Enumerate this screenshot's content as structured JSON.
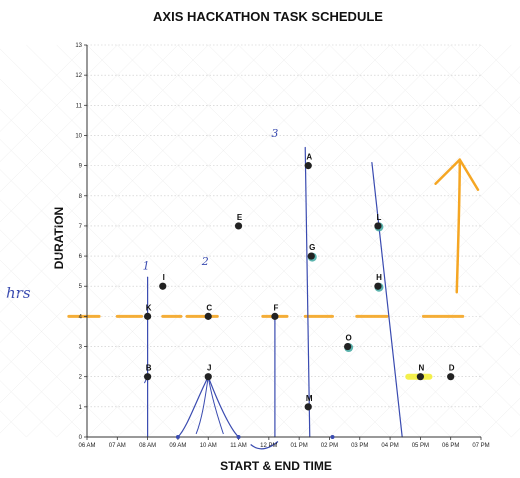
{
  "chart_data": {
    "type": "scatter",
    "title": "AXIS HACKATHON TASK SCHEDULE",
    "xlabel": "START & END TIME",
    "ylabel": "DURATION",
    "x_ticks": [
      "06 AM",
      "07 AM",
      "08 AM",
      "09 AM",
      "10 AM",
      "11 AM",
      "12 PM",
      "01 PM",
      "02 PM",
      "03 PM",
      "04 PM",
      "05 PM",
      "06 PM",
      "07 PM"
    ],
    "y_ticks": [
      "0",
      "1",
      "2",
      "3",
      "4",
      "5",
      "6",
      "7",
      "8",
      "9",
      "10",
      "11",
      "12",
      "13"
    ],
    "xlim": [
      0,
      13
    ],
    "ylim": [
      0,
      13
    ],
    "points": [
      {
        "label": "A",
        "x": 7.3,
        "y": 9
      },
      {
        "label": "B",
        "x": 2,
        "y": 2
      },
      {
        "label": "C",
        "x": 4,
        "y": 4
      },
      {
        "label": "D",
        "x": 12,
        "y": 2
      },
      {
        "label": "E",
        "x": 5,
        "y": 7
      },
      {
        "label": "F",
        "x": 6.2,
        "y": 4
      },
      {
        "label": "G",
        "x": 7.4,
        "y": 6
      },
      {
        "label": "H",
        "x": 9.6,
        "y": 5
      },
      {
        "label": "I",
        "x": 2.5,
        "y": 5
      },
      {
        "label": "J",
        "x": 4,
        "y": 2
      },
      {
        "label": "K",
        "x": 2,
        "y": 4
      },
      {
        "label": "L",
        "x": 9.6,
        "y": 7
      },
      {
        "label": "M",
        "x": 7.3,
        "y": 1
      },
      {
        "label": "N",
        "x": 11,
        "y": 2
      },
      {
        "label": "O",
        "x": 8.6,
        "y": 3
      }
    ],
    "threshold_line": {
      "y": 4,
      "color": "#f5a623"
    },
    "grid": true
  },
  "annotations": {
    "side_note": "hrs",
    "marks": [
      "1",
      "2",
      "3"
    ]
  },
  "colors": {
    "point": "#222222",
    "ink": "#3a4bb0",
    "highlighter_orange": "#f5a623",
    "highlighter_yellow": "#f3ef3a",
    "teal": "#3fa7a0"
  }
}
